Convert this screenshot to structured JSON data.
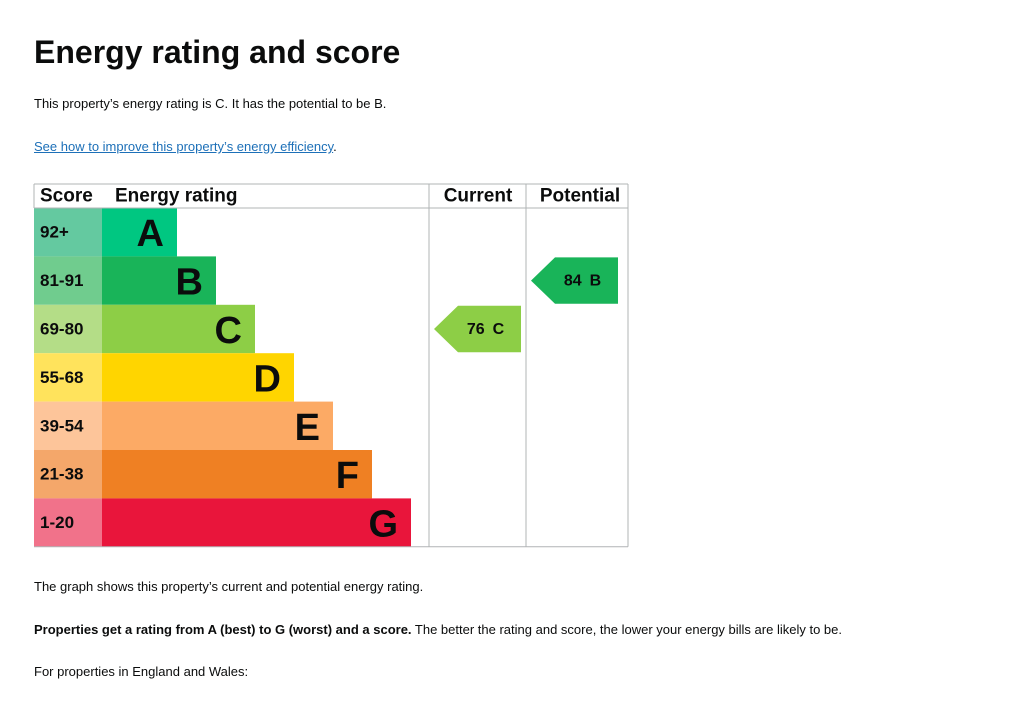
{
  "header": {
    "title": "Energy rating and score"
  },
  "summary": "This property’s energy rating is C. It has the potential to be B.",
  "link": {
    "text": "See how to improve this property’s energy efficiency",
    "suffix": "."
  },
  "table": {
    "headers": [
      "Score",
      "Energy rating",
      "Current",
      "Potential"
    ],
    "bands": [
      {
        "score": "92+",
        "letter": "A",
        "color": "#00c781",
        "score_color": "#64c9a0"
      },
      {
        "score": "81-91",
        "letter": "B",
        "color": "#19b459",
        "score_color": "#70cc8e"
      },
      {
        "score": "69-80",
        "letter": "C",
        "color": "#8dce46",
        "score_color": "#b4dd87"
      },
      {
        "score": "55-68",
        "letter": "D",
        "color": "#ffd500",
        "score_color": "#ffe35c"
      },
      {
        "score": "39-54",
        "letter": "E",
        "color": "#fcaa65",
        "score_color": "#fdc59a"
      },
      {
        "score": "21-38",
        "letter": "F",
        "color": "#ef8023",
        "score_color": "#f4a76a"
      },
      {
        "score": "1-20",
        "letter": "G",
        "color": "#e9153b",
        "score_color": "#f1728a"
      }
    ],
    "current": {
      "score": 76,
      "letter": "C"
    },
    "potential": {
      "score": 84,
      "letter": "B"
    }
  },
  "paragraphs": [
    {
      "text": "The graph shows this property’s current and potential energy rating."
    },
    {
      "bold": "Properties get a rating from A (best) to G (worst) and a score.",
      "text": " The better the rating and score, the lower your energy bills are likely to be."
    },
    {
      "text": "For properties in England and Wales:"
    }
  ]
}
